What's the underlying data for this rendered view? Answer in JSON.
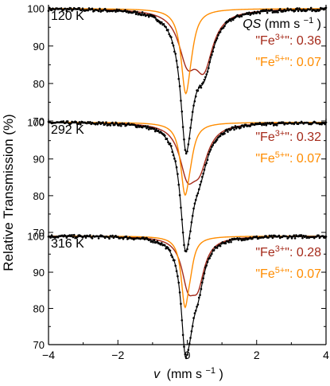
{
  "chart_data": {
    "type": "line",
    "xlabel_var": "v",
    "xlabel_unit": "(mm s",
    "xlabel_exp": "−1",
    "xlabel_close": ")",
    "ylabel": "Relative Transmission (%)",
    "xlim": [
      -4,
      4
    ],
    "xticks": [
      -4,
      -2,
      0,
      2,
      4
    ],
    "xtick_labels": [
      "−4",
      "−2",
      "0",
      "2",
      "4"
    ],
    "ylim": [
      70,
      101
    ],
    "yticks": [
      70,
      80,
      90,
      100
    ],
    "ytick_labels": [
      "70",
      "80",
      "90",
      "100"
    ],
    "qs_label": {
      "italic": "QS",
      "unit": " (mm s",
      "exp": "−1",
      "close": ")"
    },
    "colors": {
      "data": "#000000",
      "fit": "#000000",
      "fe3": "#a52a1a",
      "fe5": "#ff8c00"
    },
    "panels": [
      {
        "temp": "120 K",
        "fe3_label": "\"Fe",
        "fe3_sup": "3+",
        "fe3_close": "\"",
        "fe3_value": ": 0.36",
        "fe5_label": "\"Fe",
        "fe5_sup": "5+",
        "fe5_close": "\"",
        "fe5_value": ": 0.07",
        "min_transmission": 72,
        "series": [
          {
            "key": "fe3",
            "components": [
              {
                "center": 0.0,
                "depth": 12.0,
                "width": 0.3
              },
              {
                "center": 0.48,
                "depth": 14.0,
                "width": 0.32
              }
            ]
          },
          {
            "key": "fe5",
            "components": [
              {
                "center": -0.05,
                "depth": 20.5,
                "width": 0.16
              },
              {
                "center": 0.1,
                "depth": 4.0,
                "width": 0.16
              }
            ]
          }
        ]
      },
      {
        "temp": "292 K",
        "fe3_label": "\"Fe",
        "fe3_sup": "3+",
        "fe3_close": "\"",
        "fe3_value": ": 0.32",
        "fe5_label": "\"Fe",
        "fe5_sup": "5+",
        "fe5_close": "\"",
        "fe5_value": ": 0.07",
        "min_transmission": 73,
        "series": [
          {
            "key": "fe3",
            "components": [
              {
                "center": 0.0,
                "depth": 12.0,
                "width": 0.27
              },
              {
                "center": 0.35,
                "depth": 10.5,
                "width": 0.3
              }
            ]
          },
          {
            "key": "fe5",
            "components": [
              {
                "center": -0.07,
                "depth": 17.5,
                "width": 0.15
              },
              {
                "center": 0.08,
                "depth": 4.5,
                "width": 0.15
              }
            ]
          }
        ]
      },
      {
        "temp": "316 K",
        "fe3_label": "\"Fe",
        "fe3_sup": "3+",
        "fe3_close": "\"",
        "fe3_value": ": 0.28",
        "fe5_label": "\"Fe",
        "fe5_sup": "5+",
        "fe5_close": "\"",
        "fe5_value": ": 0.07",
        "min_transmission": 72,
        "series": [
          {
            "key": "fe3",
            "components": [
              {
                "center": 0.02,
                "depth": 11.0,
                "width": 0.22
              },
              {
                "center": 0.3,
                "depth": 11.5,
                "width": 0.24
              }
            ]
          },
          {
            "key": "fe5",
            "components": [
              {
                "center": -0.07,
                "depth": 17.5,
                "width": 0.13
              },
              {
                "center": 0.08,
                "depth": 5.0,
                "width": 0.13
              }
            ]
          }
        ]
      }
    ]
  }
}
